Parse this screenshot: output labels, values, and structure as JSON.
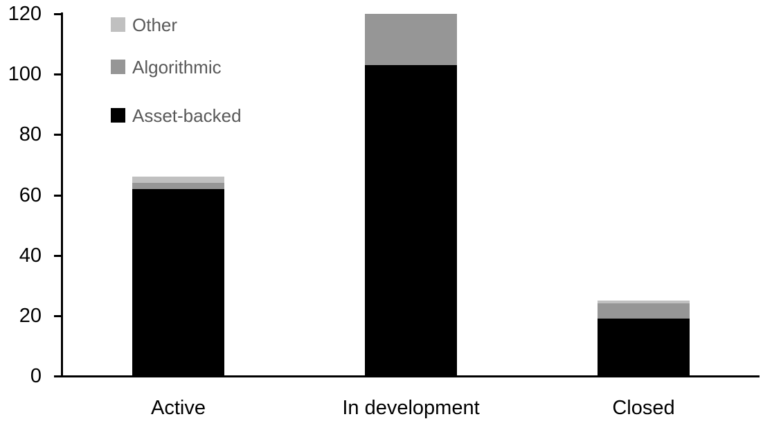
{
  "chart_data": {
    "type": "bar",
    "stacked": true,
    "title": "",
    "xlabel": "",
    "ylabel": "",
    "categories": [
      "Active",
      "In development",
      "Closed"
    ],
    "series": [
      {
        "name": "Asset-backed",
        "color": "#000000",
        "values": [
          62,
          103,
          19
        ]
      },
      {
        "name": "Algorithmic",
        "color": "#969696",
        "values": [
          2,
          17,
          5
        ]
      },
      {
        "name": "Other",
        "color": "#c0c0c0",
        "values": [
          2,
          0,
          1
        ]
      }
    ],
    "ylim": [
      0,
      120
    ],
    "yticks": [
      0,
      20,
      40,
      60,
      80,
      100,
      120
    ],
    "grid": false,
    "legend_position": "top-left-inside",
    "legend": [
      {
        "label": "Other",
        "color": "#c0c0c0"
      },
      {
        "label": "Algorithmic",
        "color": "#969696"
      },
      {
        "label": "Asset-backed",
        "color": "#000000"
      }
    ],
    "colors": {
      "axis": "#000000",
      "tick_label": "#000000",
      "legend_text": "#595959",
      "background": "#ffffff"
    }
  }
}
